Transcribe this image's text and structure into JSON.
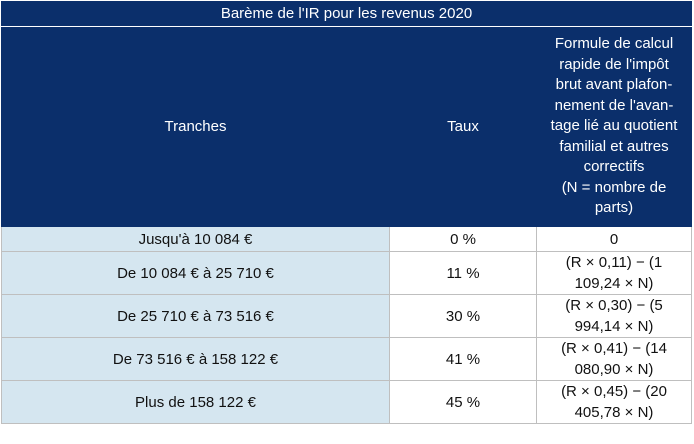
{
  "table": {
    "title": "Barème de l'IR pour les revenus 2020",
    "headers": {
      "tranches": "Tranches",
      "taux": "Taux",
      "formule": "Formule de calcul rapide de l'impôt brut avant plafonnement de l'avantage lié au quotient familial et autres correctifs (N = nombre de parts)",
      "formule_lines": [
        "Formule de calcul",
        "rapide de l'impôt",
        "brut avant plafon-",
        "nement de l'avan-",
        "tage lié au quotient",
        "familial et autres",
        "correctifs",
        "(N = nombre de",
        "parts)"
      ]
    },
    "rows": [
      {
        "tranche": "Jusqu'à 10 084 €",
        "taux": "0 %",
        "formule": "0"
      },
      {
        "tranche": "De 10 084 € à 25 710 €",
        "taux": "11 %",
        "formule": "(R × 0,11) − (1 109,24 × N)"
      },
      {
        "tranche": "De 25 710 € à 73 516 €",
        "taux": "30 %",
        "formule": "(R × 0,30) − (5 994,14 × N)"
      },
      {
        "tranche": "De 73 516 € à 158 122 €",
        "taux": "41 %",
        "formule": "(R × 0,41) − (14 080,90 × N)"
      },
      {
        "tranche": "Plus de 158 122 €",
        "taux": "45 %",
        "formule": "(R × 0,45) − (20 405,78 × N)"
      }
    ],
    "colors": {
      "header_bg": "#0b2f6b",
      "header_text": "#ffffff",
      "first_col_bg": "#d5e6f0",
      "border": "#bfbfbf"
    }
  }
}
